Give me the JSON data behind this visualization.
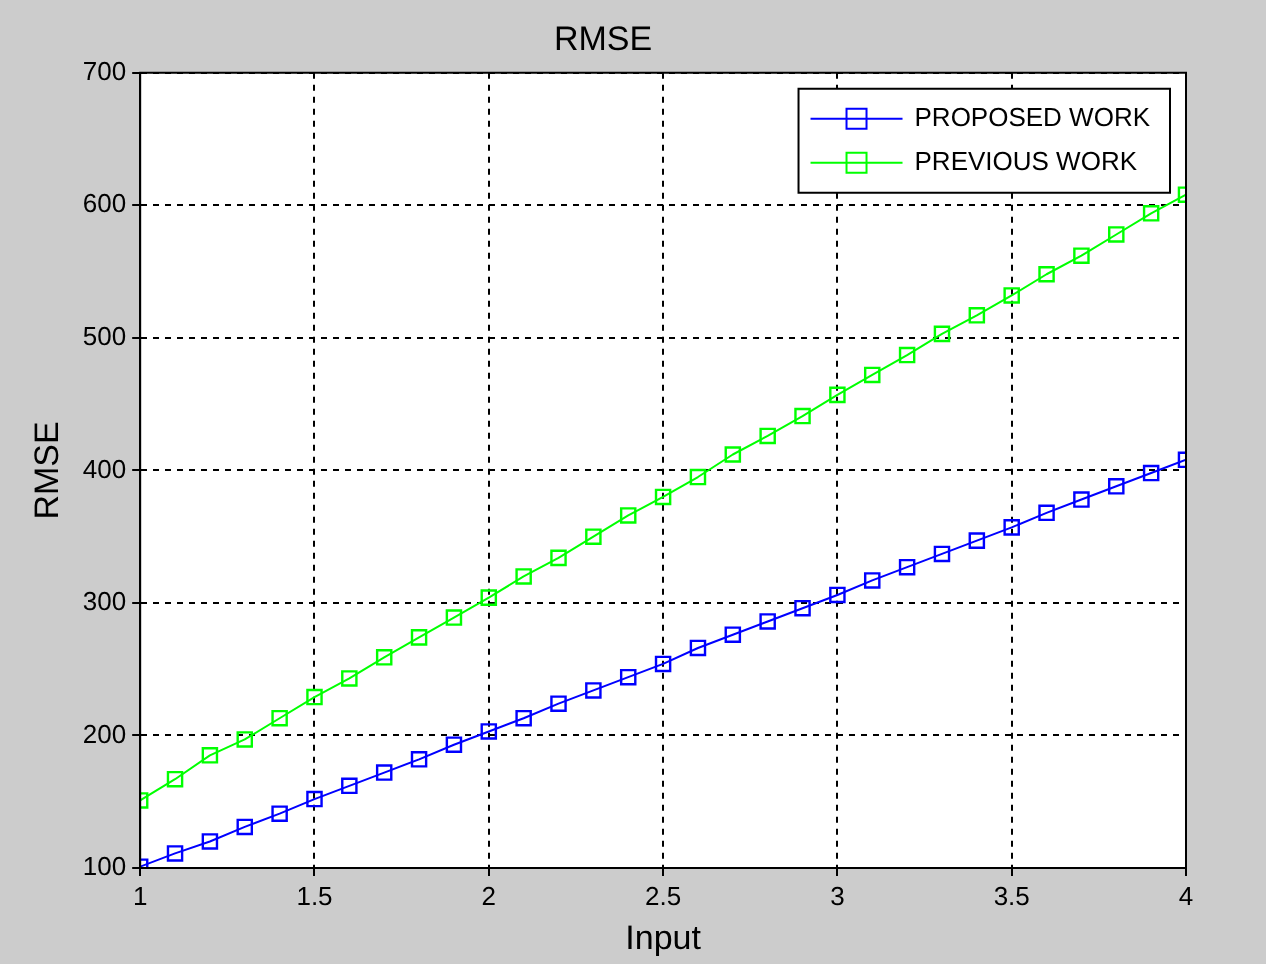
{
  "chart_data": {
    "type": "line",
    "title": "RMSE",
    "xlabel": "Input",
    "ylabel": "RMSE",
    "x": [
      1,
      1.1,
      1.2,
      1.3,
      1.4,
      1.5,
      1.6,
      1.7,
      1.8,
      1.9,
      2,
      2.1,
      2.2,
      2.3,
      2.4,
      2.5,
      2.6,
      2.7,
      2.8,
      2.9,
      3,
      3.1,
      3.2,
      3.3,
      3.4,
      3.5,
      3.6,
      3.7,
      3.8,
      3.9,
      4
    ],
    "series": [
      {
        "name": "PROPOSED WORK",
        "color": "#0000ff",
        "values": [
          101,
          111,
          120,
          131,
          141,
          152,
          162,
          172,
          182,
          193,
          203,
          213,
          224,
          234,
          244,
          254,
          266,
          276,
          286,
          296,
          306,
          317,
          327,
          337,
          347,
          357,
          368,
          378,
          388,
          398,
          408
        ]
      },
      {
        "name": "PREVIOUS WORK",
        "color": "#00ff00",
        "values": [
          151,
          167,
          185,
          197,
          213,
          229,
          243,
          259,
          274,
          289,
          304,
          320,
          334,
          350,
          366,
          380,
          395,
          412,
          426,
          441,
          457,
          472,
          487,
          503,
          517,
          532,
          548,
          562,
          578,
          594,
          608
        ]
      }
    ],
    "xlim": [
      1,
      4
    ],
    "xticks": [
      1,
      1.5,
      2,
      2.5,
      3,
      3.5,
      4
    ],
    "ylim": [
      100,
      700
    ],
    "yticks": [
      100,
      200,
      300,
      400,
      500,
      600,
      700
    ],
    "grid": true,
    "legend": "top right",
    "marker": "square",
    "line_style": "solid"
  }
}
